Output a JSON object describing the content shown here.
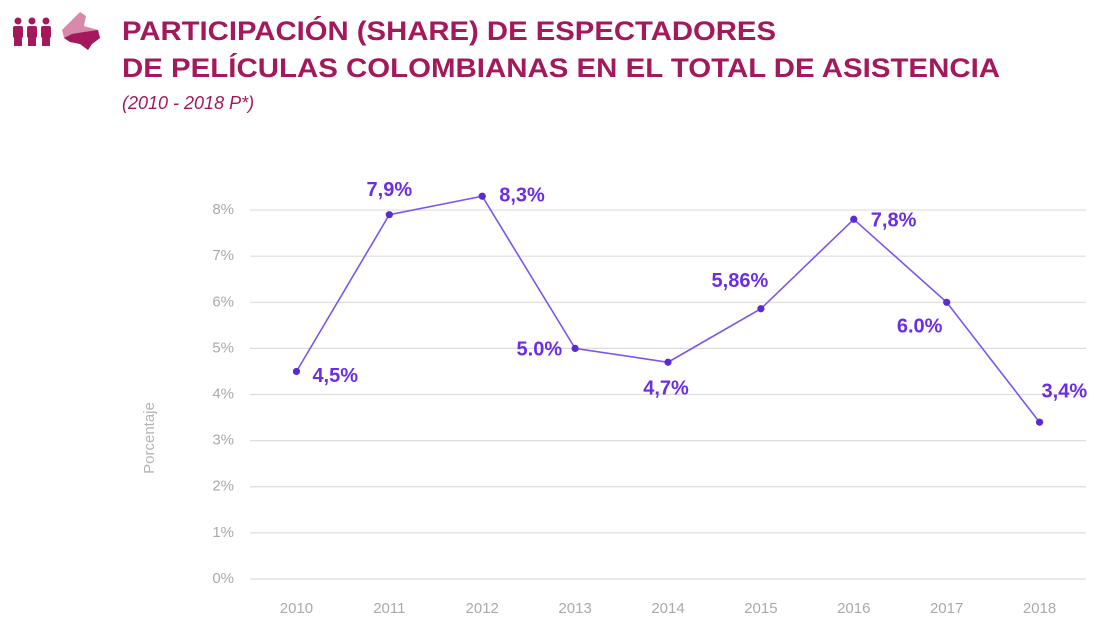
{
  "chart_data": {
    "type": "line",
    "title": [
      "PARTICIPACIÓN (SHARE) DE ESPECTADORES",
      "DE PELÍCULAS COLOMBIANAS EN EL TOTAL DE ASISTENCIA"
    ],
    "subtitle": "(2010 - 2018 P*)",
    "y_label": "Porcentaje",
    "categories": [
      "2010",
      "2011",
      "2012",
      "2013",
      "2014",
      "2015",
      "2016",
      "2017",
      "2018"
    ],
    "values": [
      4.5,
      7.9,
      8.3,
      5.0,
      4.7,
      5.86,
      7.8,
      6.0,
      3.4
    ],
    "value_labels": [
      "4,5%",
      "7,9%",
      "8,3%",
      "5.0%",
      "4,7%",
      "5,86%",
      "7,8%",
      "6.0%",
      "3,4%"
    ],
    "color": "#7c55f0",
    "marker_color": "#5a2bd4",
    "ylim": [
      0,
      8.5
    ],
    "yticks": [
      {
        "value": 0,
        "label": "0%"
      },
      {
        "value": 1,
        "label": "1%"
      },
      {
        "value": 2,
        "label": "2%"
      },
      {
        "value": 3,
        "label": "3%"
      },
      {
        "value": 4,
        "label": "4%"
      },
      {
        "value": 5,
        "label": "5%"
      },
      {
        "value": 6,
        "label": "6%"
      },
      {
        "value": 7,
        "label": "7%"
      },
      {
        "value": 8,
        "label": "8%"
      }
    ],
    "grid": true
  }
}
